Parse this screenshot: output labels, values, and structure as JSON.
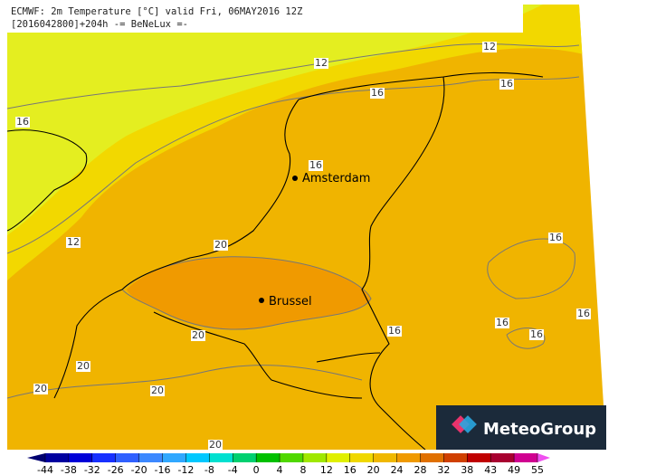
{
  "header": {
    "line1": "ECMWF: 2m Temperature [°C] valid Fri, 06MAY2016 12Z",
    "line2": "[2016042800]+204h  -= BeNeLux =-"
  },
  "cities": [
    "Amsterdam",
    "Brussel"
  ],
  "contour_labels": [
    "12",
    "12",
    "12",
    "16",
    "16",
    "16",
    "16",
    "16",
    "16",
    "16",
    "16",
    "16",
    "20",
    "20",
    "20",
    "20",
    "20",
    "20"
  ],
  "logo": "MeteoGroup",
  "colorbar": {
    "ticks": [
      -44,
      -38,
      -32,
      -26,
      -20,
      -16,
      -12,
      -8,
      -4,
      0,
      4,
      8,
      12,
      16,
      20,
      24,
      28,
      32,
      38,
      43,
      49,
      55
    ],
    "colors": [
      "#000070",
      "#0000a0",
      "#0000d8",
      "#1830ff",
      "#3060ff",
      "#3c88ff",
      "#30a8ff",
      "#00c8ff",
      "#00e0d0",
      "#00d070",
      "#00c000",
      "#50d800",
      "#a0e800",
      "#e0f000",
      "#f0d800",
      "#f0b800",
      "#f09a00",
      "#e07000",
      "#d04000",
      "#c00000",
      "#a80030",
      "#d00090",
      "#f050f0"
    ]
  }
}
